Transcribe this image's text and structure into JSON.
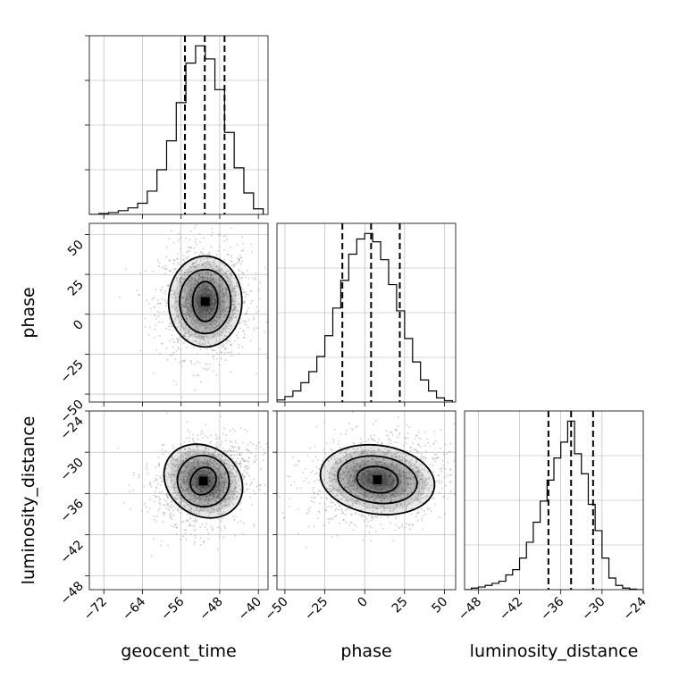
{
  "chart_data": {
    "type": "corner",
    "parameters": [
      "geocent_time",
      "phase",
      "luminosity_distance"
    ],
    "axis_labels": {
      "x": [
        "geocent_time",
        "phase",
        "luminosity_distance"
      ],
      "y": [
        "phase",
        "luminosity_distance"
      ]
    },
    "ranges": {
      "geocent_time": [
        -75,
        -38
      ],
      "phase": [
        -55,
        57
      ],
      "luminosity_distance": [
        -50,
        -24
      ]
    },
    "ticks": {
      "geocent_time": [
        "−72",
        "−64",
        "−56",
        "−48",
        "−40"
      ],
      "phase": [
        "−50",
        "−25",
        "0",
        "25",
        "50"
      ],
      "luminosity_distance": [
        "−48",
        "−42",
        "−36",
        "−30",
        "−24"
      ]
    },
    "tick_values": {
      "geocent_time": [
        -72,
        -64,
        -56,
        -48,
        -40
      ],
      "phase": [
        -50,
        -25,
        0,
        25,
        50
      ],
      "luminosity_distance": [
        -48,
        -42,
        -36,
        -30,
        -24
      ]
    },
    "quantiles": {
      "geocent_time": [
        -55.2,
        -51.1,
        -47.0
      ],
      "phase": [
        -14,
        4,
        22
      ],
      "luminosity_distance": [
        -37.8,
        -34.5,
        -31.3
      ]
    },
    "histograms": {
      "geocent_time": {
        "bin_edges": [
          -75,
          -73,
          -71,
          -69,
          -67,
          -65,
          -63,
          -61,
          -59,
          -57,
          -55,
          -53,
          -51,
          -49,
          -47,
          -45,
          -43,
          -41,
          -39
        ],
        "counts": [
          0,
          2,
          4,
          8,
          14,
          24,
          50,
          96,
          158,
          240,
          325,
          362,
          334,
          268,
          176,
          100,
          46,
          12
        ]
      },
      "phase": {
        "bin_edges": [
          -55,
          -50,
          -45,
          -40,
          -35,
          -30,
          -25,
          -20,
          -15,
          -10,
          -5,
          0,
          5,
          10,
          15,
          20,
          25,
          30,
          35,
          40,
          45,
          50,
          55
        ],
        "counts": [
          3,
          8,
          16,
          28,
          44,
          66,
          96,
          136,
          176,
          214,
          236,
          244,
          232,
          206,
          170,
          132,
          92,
          58,
          32,
          16,
          6,
          2
        ]
      },
      "luminosity_distance": {
        "bin_edges": [
          -50,
          -49,
          -48,
          -47,
          -46,
          -45,
          -44,
          -43,
          -42,
          -41,
          -40,
          -39,
          -38,
          -37,
          -36,
          -35,
          -34,
          -33,
          -32,
          -31,
          -30,
          -29,
          -28,
          -27,
          -26,
          -25,
          -24
        ],
        "counts": [
          0,
          3,
          5,
          8,
          12,
          16,
          28,
          38,
          60,
          90,
          128,
          168,
          208,
          250,
          280,
          320,
          258,
          220,
          162,
          112,
          60,
          22,
          8,
          3,
          1,
          0
        ]
      }
    },
    "joint": [
      {
        "x": "geocent_time",
        "y": "phase",
        "center": [
          -51,
          8
        ],
        "contours": [
          {
            "rx": 2.6,
            "ry": 12.5,
            "rot": 0
          },
          {
            "rx": 5.3,
            "ry": 20,
            "rot": 0
          },
          {
            "rx": 7.6,
            "ry": 28.5,
            "rot": 0
          }
        ]
      },
      {
        "x": "geocent_time",
        "y": "luminosity_distance",
        "center": [
          -51.4,
          -34.2
        ],
        "contours": [
          {
            "rx": 2.5,
            "ry": 2.1,
            "rot": -35
          },
          {
            "rx": 5.4,
            "ry": 3.7,
            "rot": -35
          },
          {
            "rx": 8.6,
            "ry": 5.0,
            "rot": -35
          }
        ]
      },
      {
        "x": "phase",
        "y": "luminosity_distance",
        "center": [
          8,
          -34
        ],
        "contours": [
          {
            "rx": 13,
            "ry": 1.9,
            "rot": -8
          },
          {
            "rx": 25,
            "ry": 3.4,
            "rot": -8
          },
          {
            "rx": 36,
            "ry": 5.0,
            "rot": -8
          }
        ]
      }
    ],
    "grid": true,
    "colors": {
      "line": "#000000",
      "grid": "#b0b0b0",
      "scatter": "#9a9a9a",
      "density": "#000000"
    }
  }
}
